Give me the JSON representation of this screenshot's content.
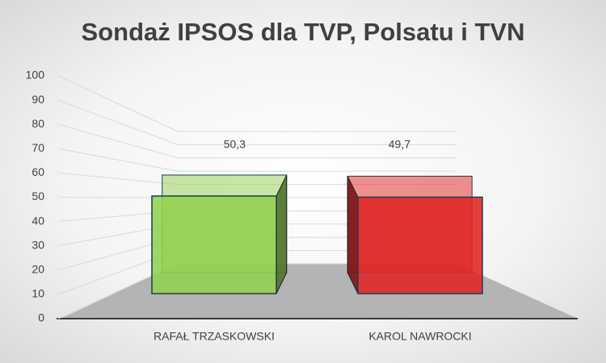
{
  "chart_data": {
    "type": "bar3d",
    "title": "Sondaż IPSOS dla TVP, Polsatu i TVN",
    "categories": [
      "RAFAŁ TRZASKOWSKI",
      "KAROL NAWROCKI"
    ],
    "values": [
      50.3,
      49.7
    ],
    "value_labels": [
      "50,3",
      "49,7"
    ],
    "colors": [
      "#92d050",
      "#e02424"
    ],
    "ylim": [
      0,
      100
    ],
    "yticks": [
      0,
      10,
      20,
      30,
      40,
      50,
      60,
      70,
      80,
      90,
      100
    ],
    "grid": true
  }
}
